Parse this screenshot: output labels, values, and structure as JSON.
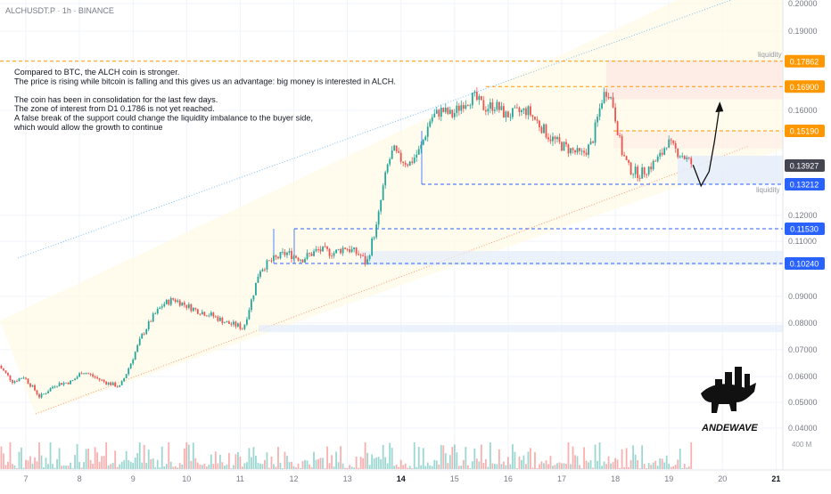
{
  "header": {
    "symbol_line": "ALCHUSDT.P · 1h · BINANCE"
  },
  "annotation": {
    "lines": [
      "Compared to BTC, the ALCH coin is stronger.",
      "The price is rising while bitcoin is falling and this gives us an advantage: big money is interested in ALCH.",
      "",
      "The coin has been in consolidation for the last few days.",
      "The zone of interest from D1 0.1786 is not yet reached.",
      "A false break of the support could change the liquidity imbalance to the buyer side,",
      "which would allow the growth to continue"
    ]
  },
  "liquidity_labels": [
    "liquidity",
    "liquidity"
  ],
  "logo": {
    "text": "ANDEWAVE"
  },
  "colors": {
    "up": "#26a69a",
    "down": "#ef5350",
    "orange": "#ff9800",
    "blue": "#2962ff",
    "current": "#434651",
    "grid": "#f0f3fa",
    "axis_text": "#787b86",
    "channel": "#fffbe6"
  },
  "chart_data": {
    "type": "candlestick",
    "symbol": "ALCHUSDT.P",
    "timeframe": "1h",
    "exchange": "BINANCE",
    "ylim": [
      0.035,
      0.2
    ],
    "y_ticks": [
      "0.20000",
      "0.19000",
      "0.16000",
      "0.12000",
      "0.11000",
      "0.09000",
      "0.08000",
      "0.07000",
      "0.06000",
      "0.05000",
      "0.04000"
    ],
    "y_ticks_values": [
      0.2,
      0.19,
      0.16,
      0.12,
      0.11,
      0.09,
      0.08,
      0.07,
      0.06,
      0.05,
      0.04
    ],
    "x_ticks": [
      "7",
      "8",
      "9",
      "10",
      "11",
      "12",
      "13",
      "14",
      "15",
      "16",
      "17",
      "18",
      "19",
      "20",
      "21"
    ],
    "bold_x_ticks": [
      "14",
      "21"
    ],
    "volume_label": "400 M",
    "levels": [
      {
        "label": "0.17862",
        "value": 0.17862,
        "color": "orange",
        "style": "dashed"
      },
      {
        "label": "0.16900",
        "value": 0.169,
        "color": "orange",
        "style": "dashed"
      },
      {
        "label": "0.15190",
        "value": 0.1519,
        "color": "orange",
        "style": "dashed"
      },
      {
        "label": "0.13927",
        "value": 0.13927,
        "color": "current",
        "style": "none"
      },
      {
        "label": "0.13212",
        "value": 0.13212,
        "color": "blue",
        "style": "dashed"
      },
      {
        "label": "0.11530",
        "value": 0.1153,
        "color": "blue",
        "style": "dashed"
      },
      {
        "label": "0.10240",
        "value": 0.1024,
        "color": "blue",
        "style": "dashed"
      }
    ],
    "price_path": [
      [
        6.5,
        0.065
      ],
      [
        6.8,
        0.058
      ],
      [
        7.0,
        0.06
      ],
      [
        7.2,
        0.055
      ],
      [
        7.3,
        0.052
      ],
      [
        7.6,
        0.057
      ],
      [
        7.9,
        0.058
      ],
      [
        8.1,
        0.062
      ],
      [
        8.3,
        0.06
      ],
      [
        8.5,
        0.058
      ],
      [
        8.8,
        0.056
      ],
      [
        9.0,
        0.065
      ],
      [
        9.2,
        0.075
      ],
      [
        9.4,
        0.082
      ],
      [
        9.6,
        0.087
      ],
      [
        9.8,
        0.089
      ],
      [
        10.0,
        0.087
      ],
      [
        10.2,
        0.085
      ],
      [
        10.5,
        0.083
      ],
      [
        10.8,
        0.08
      ],
      [
        11.0,
        0.079
      ],
      [
        11.1,
        0.078
      ],
      [
        11.3,
        0.092
      ],
      [
        11.4,
        0.1
      ],
      [
        11.6,
        0.103
      ],
      [
        11.9,
        0.106
      ],
      [
        12.2,
        0.104
      ],
      [
        12.5,
        0.107
      ],
      [
        12.8,
        0.106
      ],
      [
        13.0,
        0.108
      ],
      [
        13.3,
        0.105
      ],
      [
        13.4,
        0.102
      ],
      [
        13.5,
        0.11
      ],
      [
        13.6,
        0.117
      ],
      [
        13.7,
        0.13
      ],
      [
        13.8,
        0.14
      ],
      [
        13.9,
        0.145
      ],
      [
        14.0,
        0.142
      ],
      [
        14.2,
        0.14
      ],
      [
        14.4,
        0.145
      ],
      [
        14.6,
        0.157
      ],
      [
        14.8,
        0.16
      ],
      [
        15.0,
        0.158
      ],
      [
        15.2,
        0.163
      ],
      [
        15.4,
        0.165
      ],
      [
        15.6,
        0.161
      ],
      [
        15.8,
        0.162
      ],
      [
        16.0,
        0.158
      ],
      [
        16.2,
        0.159
      ],
      [
        16.4,
        0.16
      ],
      [
        16.6,
        0.155
      ],
      [
        16.8,
        0.15
      ],
      [
        17.0,
        0.147
      ],
      [
        17.2,
        0.145
      ],
      [
        17.4,
        0.143
      ],
      [
        17.6,
        0.147
      ],
      [
        17.8,
        0.165
      ],
      [
        17.9,
        0.168
      ],
      [
        18.0,
        0.162
      ],
      [
        18.15,
        0.145
      ],
      [
        18.3,
        0.138
      ],
      [
        18.5,
        0.136
      ],
      [
        18.7,
        0.139
      ],
      [
        18.9,
        0.143
      ],
      [
        19.0,
        0.148
      ],
      [
        19.15,
        0.145
      ],
      [
        19.3,
        0.143
      ],
      [
        19.45,
        0.14
      ]
    ],
    "volume_profile": "random low bars with occasional spikes",
    "projection": [
      [
        19.45,
        0.1395
      ],
      [
        19.6,
        0.1315
      ],
      [
        19.75,
        0.137
      ],
      [
        19.85,
        0.148
      ],
      [
        19.95,
        0.162
      ]
    ]
  }
}
